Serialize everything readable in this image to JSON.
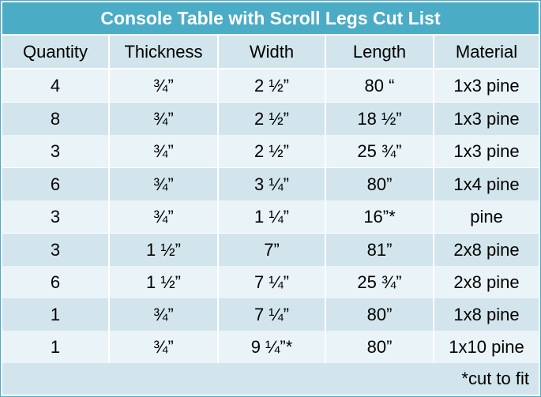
{
  "title": "Console Table with Scroll Legs Cut List",
  "columns": [
    "Quantity",
    "Thickness",
    "Width",
    "Length",
    "Material"
  ],
  "rows": [
    [
      "4",
      "¾”",
      "2 ½”",
      "80 “",
      "1x3 pine"
    ],
    [
      "8",
      "¾”",
      "2 ½”",
      "18 ½”",
      "1x3 pine"
    ],
    [
      "3",
      "¾”",
      "2 ½”",
      "25 ¾”",
      "1x3 pine"
    ],
    [
      "6",
      "¾”",
      "3 ¼”",
      "80”",
      "1x4 pine"
    ],
    [
      "3",
      "¾”",
      "1 ¼”",
      "16”*",
      "pine"
    ],
    [
      "3",
      "1 ½”",
      "7”",
      "81”",
      "2x8 pine"
    ],
    [
      "6",
      "1 ½”",
      "7 ¼”",
      "25 ¾”",
      "2x8 pine"
    ],
    [
      "1",
      "¾”",
      "7 ¼”",
      "80”",
      "1x8 pine"
    ],
    [
      "1",
      "¾”",
      "9 ¼”*",
      "80”",
      "1x10 pine"
    ]
  ],
  "footnote": "*cut to fit",
  "colors": {
    "header": "#4bacc6",
    "band_dark": "#d2e4ec",
    "band_light": "#eaf3f7"
  }
}
